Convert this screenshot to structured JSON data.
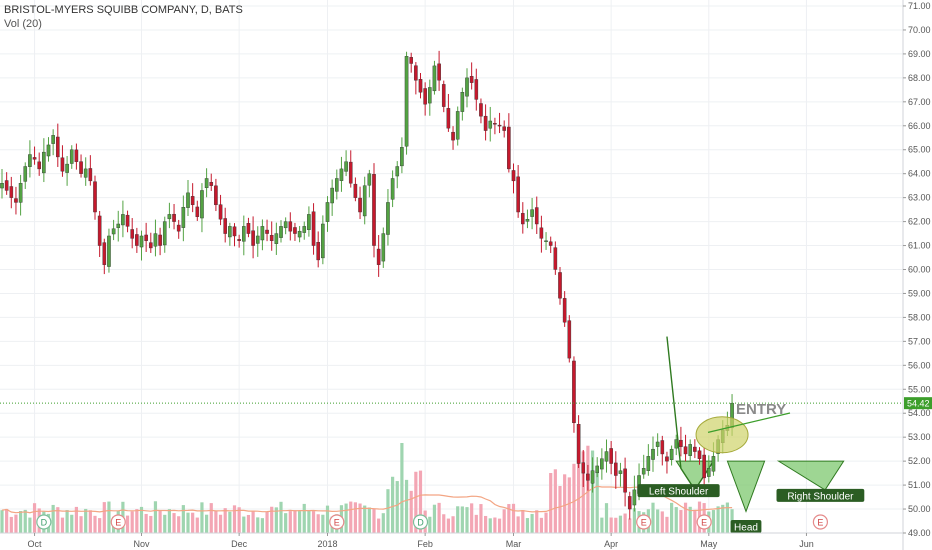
{
  "header": {
    "symbol_line": "BRISTOL-MYERS SQUIBB COMPANY, D, BATS",
    "volume_label": "Vol (20)"
  },
  "colors": {
    "up": "#53a243",
    "down": "#c5192d",
    "vol_up": "#9fd5b0",
    "vol_down": "#f3a6b4",
    "ma": "#f3a583",
    "pattern_fill": "#7ec86f",
    "entry_fill": "#cfd36a",
    "price_line": "#3c9e2b",
    "grid": "#eef0f3"
  },
  "chart_data": {
    "type": "candlestick",
    "y_axis": {
      "min": 49,
      "max": 71,
      "ticks": [
        "71.00",
        "70.00",
        "69.00",
        "68.00",
        "67.00",
        "66.00",
        "65.00",
        "64.00",
        "63.00",
        "62.00",
        "61.00",
        "60.00",
        "59.00",
        "58.00",
        "57.00",
        "56.00",
        "55.00",
        "54.00",
        "53.00",
        "52.00",
        "51.00",
        "50.00",
        "49.00"
      ]
    },
    "x_axis": {
      "labels": [
        {
          "label": "Oct",
          "index": 7
        },
        {
          "label": "Nov",
          "index": 30
        },
        {
          "label": "Dec",
          "index": 51
        },
        {
          "label": "2018",
          "index": 70
        },
        {
          "label": "Feb",
          "index": 91
        },
        {
          "label": "Mar",
          "index": 110
        },
        {
          "label": "Apr",
          "index": 131
        },
        {
          "label": "May",
          "index": 152
        },
        {
          "label": "Jun",
          "index": 173
        }
      ]
    },
    "last_price": "54.42",
    "last_price_value": 54.42,
    "closes": [
      63.6,
      63.3,
      63.0,
      62.8,
      63.6,
      64.3,
      64.8,
      64.6,
      64.2,
      64.9,
      65.2,
      65.6,
      64.7,
      64.1,
      64.4,
      65.0,
      64.5,
      64.0,
      64.2,
      63.7,
      62.4,
      61.0,
      60.2,
      61.4,
      61.7,
      61.9,
      62.3,
      61.8,
      61.3,
      61.0,
      61.4,
      61.2,
      60.9,
      61.5,
      61.0,
      62.0,
      62.3,
      62.0,
      61.6,
      62.6,
      63.2,
      62.7,
      62.2,
      63.3,
      63.8,
      63.5,
      62.7,
      62.1,
      61.5,
      61.8,
      61.4,
      61.2,
      61.8,
      61.5,
      61.0,
      61.4,
      61.8,
      61.5,
      61.2,
      61.5,
      61.8,
      62.0,
      61.6,
      61.5,
      61.6,
      61.8,
      62.3,
      61.0,
      60.4,
      61.9,
      62.8,
      63.4,
      63.8,
      64.2,
      64.5,
      63.6,
      63.0,
      62.4,
      63.5,
      64.0,
      61.0,
      60.2,
      61.5,
      62.8,
      63.8,
      64.3,
      65.1,
      68.9,
      68.6,
      67.9,
      67.4,
      66.9,
      67.6,
      68.5,
      67.9,
      66.8,
      65.9,
      65.4,
      66.6,
      67.4,
      68.0,
      67.8,
      67.1,
      66.4,
      65.8,
      66.2,
      66.1,
      66.0,
      65.8,
      64.2,
      63.7,
      62.4,
      61.9,
      62.1,
      62.5,
      61.9,
      61.3,
      61.2,
      61.0,
      60.0,
      58.8,
      57.8,
      56.3,
      53.6,
      51.9,
      51.5,
      51.2,
      51.6,
      51.8,
      52.1,
      52.4,
      51.9,
      51.4,
      51.6,
      50.7,
      50.0,
      50.8,
      51.4,
      51.7,
      52.2,
      52.5,
      52.8,
      52.3,
      52.0,
      52.5,
      52.9,
      52.6,
      52.3,
      52.7,
      52.4,
      52.1,
      51.3,
      51.7,
      52.2,
      52.9,
      53.3,
      53.5,
      54.42
    ],
    "patterns": [
      {
        "label": "Left Shoulder"
      },
      {
        "label": "Head"
      },
      {
        "label": "Right Shoulder"
      }
    ],
    "annotation": "ENTRY",
    "earnings_markers": [
      "D",
      "E",
      "E",
      "D",
      "E",
      "E",
      "E"
    ]
  }
}
